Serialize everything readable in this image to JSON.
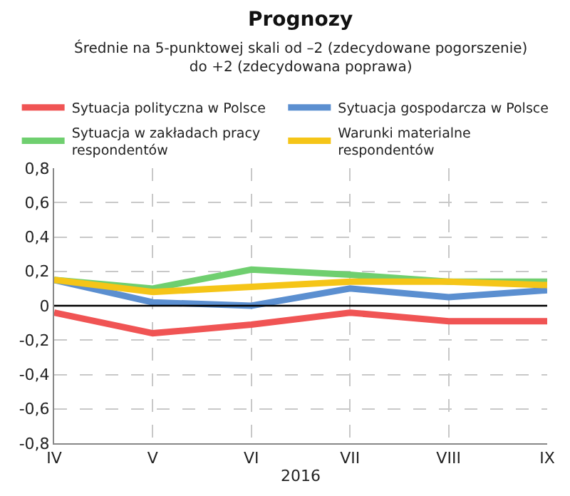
{
  "chart_data": {
    "type": "line",
    "title": "Prognozy",
    "subtitle": "Średnie na 5-punktowej skali od –2 (zdecydowane pogorszenie) do +2 (zdecydowana poprawa)",
    "xlabel": "2016",
    "categories": [
      "IV",
      "V",
      "VI",
      "VII",
      "VIII",
      "IX"
    ],
    "series": [
      {
        "name": "Sytuacja polityczna w Polsce",
        "color": "#f05454",
        "values": [
          -0.04,
          -0.16,
          -0.11,
          -0.04,
          -0.09,
          -0.09
        ]
      },
      {
        "name": "Sytuacja gospodarcza w Polsce",
        "color": "#5b8fd0",
        "values": [
          0.15,
          0.02,
          0.0,
          0.1,
          0.05,
          0.09
        ]
      },
      {
        "name": "Sytuacja w zakładach pracy respondentów",
        "color": "#6fcf6f",
        "values": [
          0.15,
          0.1,
          0.21,
          0.18,
          0.14,
          0.14
        ]
      },
      {
        "name": "Warunki materialne respondentów",
        "color": "#f5c518",
        "values": [
          0.15,
          0.08,
          0.11,
          0.14,
          0.14,
          0.12
        ]
      }
    ],
    "ylim": [
      -0.8,
      0.8
    ],
    "yticks": [
      {
        "value": -0.8,
        "label": "-0,8"
      },
      {
        "value": -0.6,
        "label": "-0,6"
      },
      {
        "value": -0.4,
        "label": "-0,4"
      },
      {
        "value": -0.2,
        "label": "-0,2"
      },
      0,
      {
        "value": 0.2,
        "label": "0,2"
      },
      {
        "value": 0.4,
        "label": "0,4"
      },
      {
        "value": 0.6,
        "label": "0,6"
      },
      {
        "value": 0.8,
        "label": "0,8"
      }
    ],
    "ref_lines": [
      {
        "axis": "y",
        "value": 0,
        "color": "#000000"
      }
    ],
    "grid": true,
    "legend": "top",
    "marker": "none",
    "line_style": "solid"
  }
}
